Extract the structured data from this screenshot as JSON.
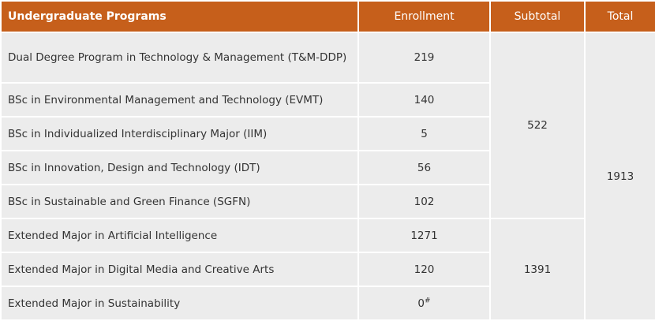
{
  "headers": {
    "program": "Undergraduate Programs",
    "enrollment": "Enrollment",
    "subtotal": "Subtotal",
    "total": "Total"
  },
  "rows": [
    {
      "program": "Dual Degree Program in Technology & Management (T&M-DDP)",
      "enrollment": "219"
    },
    {
      "program": "BSc in Environmental Management and Technology (EVMT)",
      "enrollment": "140"
    },
    {
      "program": "BSc in Individualized Interdisciplinary Major (IIM)",
      "enrollment": "5"
    },
    {
      "program": "BSc in Innovation, Design and Technology (IDT)",
      "enrollment": "56"
    },
    {
      "program": "BSc in Sustainable and Green Finance (SGFN)",
      "enrollment": "102"
    },
    {
      "program": "Extended Major in Artificial Intelligence",
      "enrollment": "1271"
    },
    {
      "program": "Extended Major in Digital Media and Creative Arts",
      "enrollment": "120"
    },
    {
      "program": "Extended Major in Sustainability",
      "enrollment": "0",
      "enrollment_mark": "#"
    }
  ],
  "subtotals": {
    "group_1": "522",
    "group_2": "1391"
  },
  "total": "1913",
  "colors": {
    "header_bg": "#c65f1b",
    "row_bg": "#ececec"
  }
}
